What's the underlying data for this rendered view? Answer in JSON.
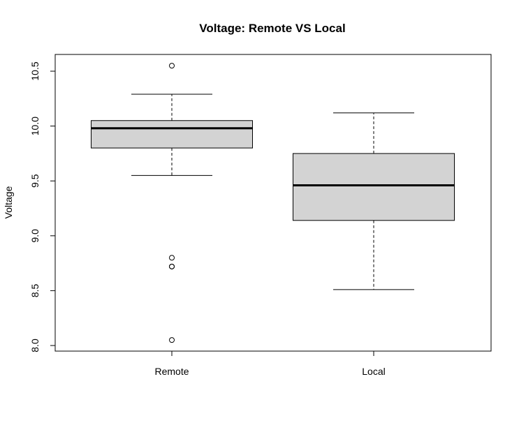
{
  "chart_data": {
    "type": "boxplot",
    "title": "Voltage: Remote VS Local",
    "xlabel": "",
    "ylabel": "Voltage",
    "ylim": [
      7.97,
      10.65
    ],
    "yticks": [
      8.0,
      8.5,
      9.0,
      9.5,
      10.0,
      10.5
    ],
    "ytick_labels": [
      "8.0",
      "8.5",
      "9.0",
      "9.5",
      "10.0",
      "10.5"
    ],
    "grid": false,
    "categories": [
      "Remote",
      "Local"
    ],
    "boxes": [
      {
        "category": "Remote",
        "whisker_low": 9.55,
        "q1": 9.8,
        "median": 9.98,
        "q3": 10.05,
        "whisker_high": 10.29,
        "outliers": [
          10.55,
          8.8,
          8.72,
          8.72,
          8.05
        ]
      },
      {
        "category": "Local",
        "whisker_low": 8.51,
        "q1": 9.14,
        "median": 9.46,
        "q3": 9.75,
        "whisker_high": 10.12,
        "outliers": []
      }
    ],
    "colors": {
      "box_fill": "#d3d3d3",
      "line": "#000000"
    }
  }
}
